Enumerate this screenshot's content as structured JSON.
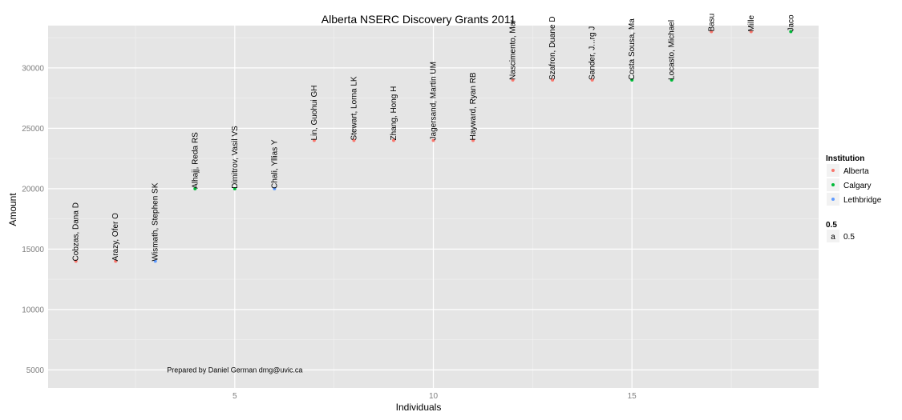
{
  "chart_data": {
    "type": "scatter",
    "title": "Alberta NSERC Discovery Grants 2011",
    "xlabel": "Individuals",
    "ylabel": "Amount",
    "xlim": [
      0.3,
      19.7
    ],
    "ylim": [
      3500,
      33500
    ],
    "x_ticks": [
      5,
      10,
      15
    ],
    "x_tick_labels": [
      "5",
      "10",
      "15"
    ],
    "y_ticks": [
      5000,
      10000,
      15000,
      20000,
      25000,
      30000
    ],
    "y_tick_labels": [
      "5000",
      "10000",
      "15000",
      "20000",
      "25000",
      "30000"
    ],
    "grid": true,
    "legend_position": "right",
    "institutions": [
      {
        "name": "Alberta",
        "color": "#f8766d"
      },
      {
        "name": "Calgary",
        "color": "#00ba38"
      },
      {
        "name": "Lethbridge",
        "color": "#619cff"
      }
    ],
    "points": [
      {
        "x": 1,
        "y": 14000,
        "label": "Cobzas, Dana D",
        "institution": "Alberta"
      },
      {
        "x": 2,
        "y": 14000,
        "label": "Arazy, Ofer O",
        "institution": "Alberta"
      },
      {
        "x": 3,
        "y": 14000,
        "label": "Wismath, Stephen SK",
        "institution": "Lethbridge"
      },
      {
        "x": 4,
        "y": 20000,
        "label": "Alhajj, Reda RS",
        "institution": "Calgary"
      },
      {
        "x": 5,
        "y": 20000,
        "label": "Dimitrov, Vasil VS",
        "institution": "Calgary"
      },
      {
        "x": 6,
        "y": 20000,
        "label": "Chali, Yllias Y",
        "institution": "Lethbridge"
      },
      {
        "x": 7,
        "y": 24000,
        "label": "Lin, Guohui GH",
        "institution": "Alberta"
      },
      {
        "x": 8,
        "y": 24000,
        "label": "Stewart, Lorna LK",
        "institution": "Alberta"
      },
      {
        "x": 9,
        "y": 24000,
        "label": "Zhang, Hong H",
        "institution": "Alberta"
      },
      {
        "x": 10,
        "y": 24000,
        "label": "Jagersand, Martin UM",
        "institution": "Alberta"
      },
      {
        "x": 11,
        "y": 24000,
        "label": "Hayward, Ryan RB",
        "institution": "Alberta"
      },
      {
        "x": 12,
        "y": 29000,
        "label": "Nascimento, Mar",
        "institution": "Alberta"
      },
      {
        "x": 13,
        "y": 29000,
        "label": "Szafron, Duane D",
        "institution": "Alberta"
      },
      {
        "x": 14,
        "y": 29000,
        "label": "Sander, J...rg J",
        "institution": "Alberta"
      },
      {
        "x": 15,
        "y": 29000,
        "label": "Costa Sousa, Ma",
        "institution": "Calgary"
      },
      {
        "x": 16,
        "y": 29000,
        "label": "Locasto, Michael",
        "institution": "Calgary"
      },
      {
        "x": 17,
        "y": 33000,
        "label": "Basu",
        "institution": "Alberta"
      },
      {
        "x": 18,
        "y": 33000,
        "label": "Mille",
        "institution": "Alberta"
      },
      {
        "x": 19,
        "y": 33000,
        "label": "Jaco",
        "institution": "Calgary"
      }
    ],
    "legend": {
      "title": "Institution",
      "entries": [
        "Alberta",
        "Calgary",
        "Lethbridge"
      ],
      "alpha_title": "0.5",
      "alpha_key": "a",
      "alpha_label": "0.5"
    },
    "annotation": "Prepared by Daniel German dmg@uvic.ca",
    "annotation_x": 5,
    "annotation_y": 5000
  }
}
